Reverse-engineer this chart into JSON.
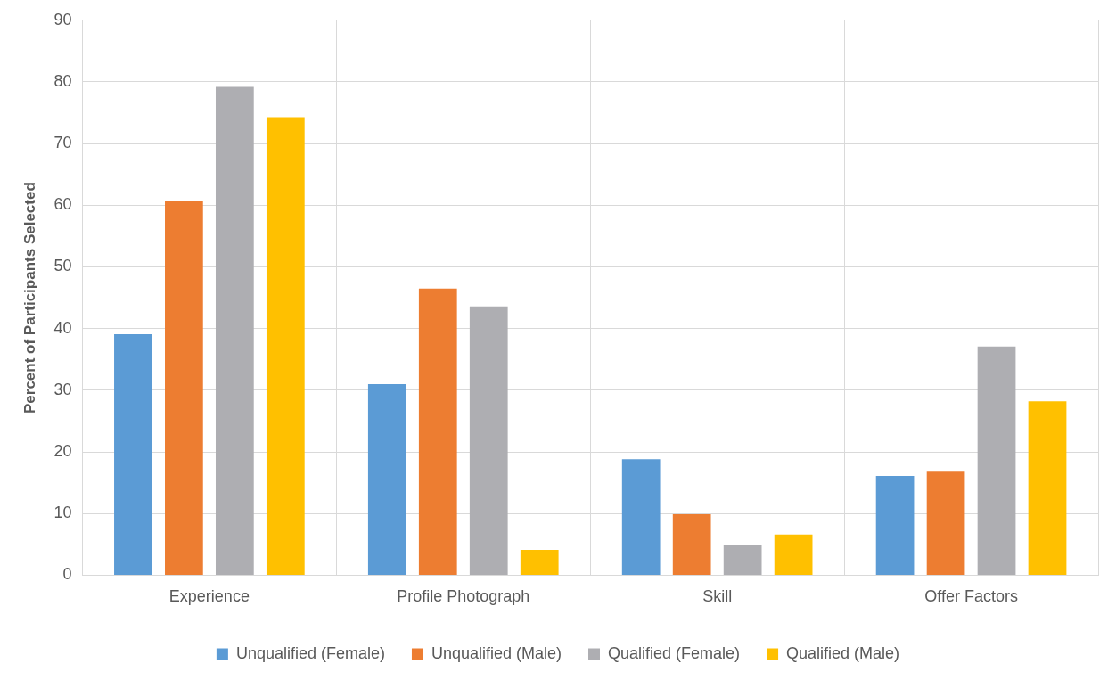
{
  "chart_data": {
    "type": "bar",
    "ylabel": "Percent of Participants Selected",
    "categories": [
      "Experience",
      "Profile Photograph",
      "Skill",
      "Offer Factors"
    ],
    "series": [
      {
        "name": "Unqualified (Female)",
        "color": "#5b9bd5",
        "values": [
          39.1,
          31.0,
          18.8,
          16.1
        ]
      },
      {
        "name": "Unqualified (Male)",
        "color": "#ed7d31",
        "values": [
          60.7,
          46.5,
          9.9,
          16.8
        ]
      },
      {
        "name": "Qualified (Female)",
        "color": "#aeaeb2",
        "values": [
          79.2,
          43.6,
          4.9,
          37.1
        ]
      },
      {
        "name": "Qualified (Male)",
        "color": "#ffc000",
        "values": [
          74.3,
          4.1,
          6.6,
          28.2
        ]
      }
    ],
    "ylim": [
      0,
      90
    ],
    "yticks": [
      0,
      10,
      20,
      30,
      40,
      50,
      60,
      70,
      80,
      90
    ],
    "grid": true,
    "legend": "bottom"
  }
}
